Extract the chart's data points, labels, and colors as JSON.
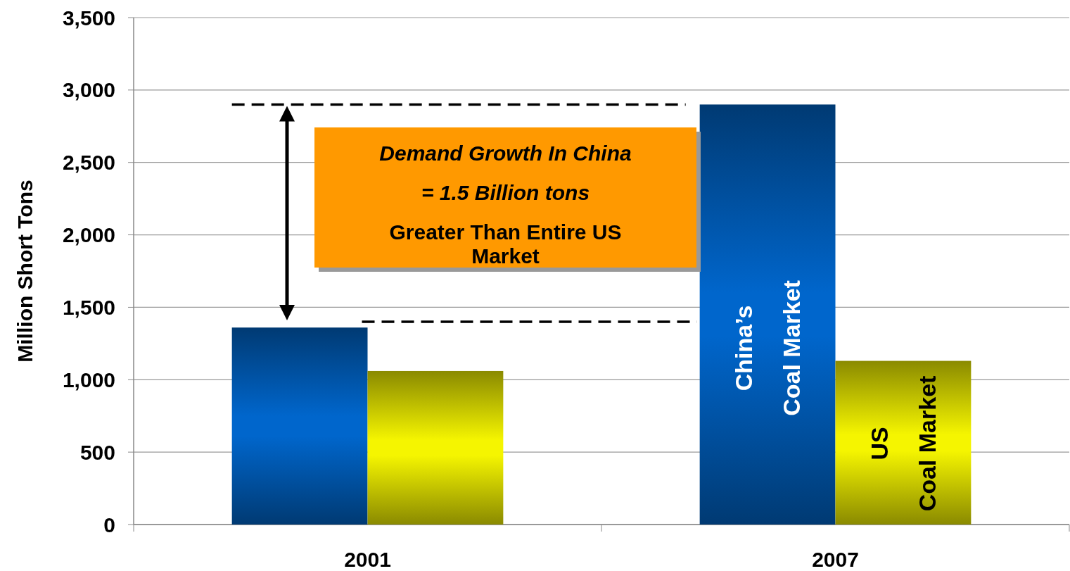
{
  "chart_data": {
    "type": "bar",
    "categories": [
      "2001",
      "2007"
    ],
    "series": [
      {
        "name": "China’s Coal Market",
        "color": "#0066cc",
        "values": [
          1360,
          2900
        ]
      },
      {
        "name": "US Coal Market",
        "color": "#f5f500",
        "values": [
          1060,
          1130
        ]
      }
    ],
    "ylabel": "Million Short Tons",
    "ylim": [
      0,
      3500
    ],
    "yticks": [
      {
        "value": 0,
        "label": "0"
      },
      {
        "value": 500,
        "label": "500"
      },
      {
        "value": 1000,
        "label": "1,000"
      },
      {
        "value": 1500,
        "label": "1,500"
      },
      {
        "value": 2000,
        "label": "2,000"
      },
      {
        "value": 2500,
        "label": "2,500"
      },
      {
        "value": 3000,
        "label": "3,000"
      },
      {
        "value": 3500,
        "label": "3,500"
      }
    ],
    "grid": "y",
    "ref_lines": [
      {
        "axis": "y",
        "value": 2900,
        "line_style": "dashed"
      },
      {
        "axis": "y",
        "value": 1400,
        "line_style": "dashed"
      }
    ],
    "annotations": [
      "Demand Growth In China",
      "= 1.5 Billion tons",
      "Greater Than Entire US Market"
    ]
  }
}
